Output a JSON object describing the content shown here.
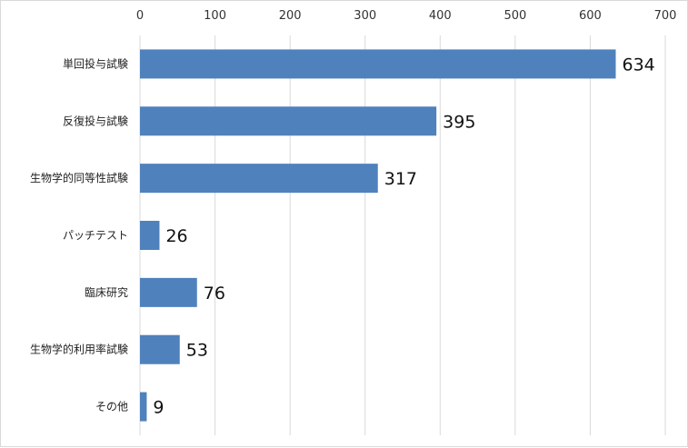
{
  "chart_data": {
    "type": "bar",
    "orientation": "horizontal",
    "categories": [
      "単回投与試験",
      "反復投与試験",
      "生物学的同等性試験",
      "パッチテスト",
      "臨床研究",
      "生物学的利用率試験",
      "その他"
    ],
    "values": [
      634,
      395,
      317,
      26,
      76,
      53,
      9
    ],
    "data_labels": [
      "634",
      "395",
      "317",
      "26",
      "76",
      "53",
      "9"
    ],
    "xlim": [
      0,
      700
    ],
    "xticks": [
      0,
      100,
      200,
      300,
      400,
      500,
      600,
      700
    ],
    "x_axis_position": "top",
    "grid": true,
    "bar_color": "#4f81bd",
    "grid_color": "#d9d9d9",
    "title": "",
    "xlabel": "",
    "ylabel": ""
  }
}
